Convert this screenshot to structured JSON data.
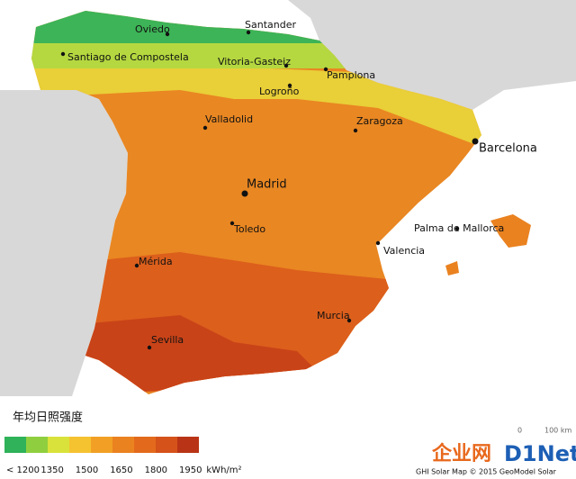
{
  "title": "年均日照强度",
  "cities": [
    {
      "name": "Oviedo"
    },
    {
      "name": "Santander"
    },
    {
      "name": "Santiago de Compostela"
    },
    {
      "name": "Vitoria-Gasteiz"
    },
    {
      "name": "Pamplona"
    },
    {
      "name": "Logroño"
    },
    {
      "name": "Valladolid"
    },
    {
      "name": "Zaragoza"
    },
    {
      "name": "Barcelona"
    },
    {
      "name": "Madrid"
    },
    {
      "name": "Toledo"
    },
    {
      "name": "Valencia"
    },
    {
      "name": "Palma de Mallorca"
    },
    {
      "name": "Mérida"
    },
    {
      "name": "Murcia"
    },
    {
      "name": "Sevilla"
    }
  ],
  "legend": {
    "labels": [
      "< 1200",
      "1350",
      "1500",
      "1650",
      "1800",
      "1950"
    ],
    "unit": "kWh/m²",
    "colors": [
      "#2fb25a",
      "#8fcf3f",
      "#d9e23a",
      "#f5c230",
      "#f1a025",
      "#ea8220",
      "#e36a1c",
      "#d5521a",
      "#b93416"
    ]
  },
  "credit": "GHI Solar Map © 2015 GeoModel Solar",
  "scale": {
    "start": "0",
    "end": "100 km"
  },
  "watermark": {
    "cn": "企业网",
    "en": "D1Net"
  }
}
